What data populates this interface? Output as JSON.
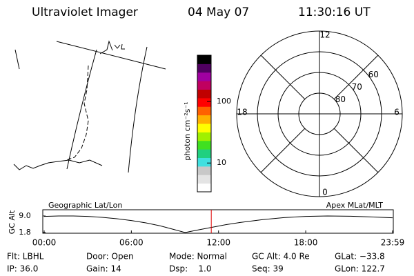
{
  "header": {
    "title": "Ultraviolet Imager",
    "date": "04 May 07",
    "time": "11:30:16 UT"
  },
  "colorbar": {
    "label": "photon cm⁻²s⁻¹",
    "scale": "log",
    "lim": [
      3.4,
      566
    ],
    "ticks": [
      10,
      100
    ],
    "colors": [
      "#ffffff",
      "#e4e4e4",
      "#c8c8c8",
      "#40e0e0",
      "#20d080",
      "#40e020",
      "#a0f000",
      "#ffff00",
      "#ffb000",
      "#ff6000",
      "#ff0000",
      "#c00000",
      "#c00060",
      "#a000a0",
      "#500060",
      "#000000"
    ]
  },
  "polar": {
    "rlim": [
      90,
      50
    ],
    "rticks": [
      80,
      70,
      60
    ],
    "mlt": [
      12,
      18,
      6,
      0
    ]
  },
  "chart_data": {
    "type": "line",
    "ylabel": "GC Alt",
    "left_label": "Geographic Lat/Lon",
    "right_label": "Apex MLat/MLT",
    "x": [
      0,
      1,
      2,
      3,
      4,
      5,
      6,
      7,
      8,
      9,
      9.7,
      10.5,
      11.5,
      12.5,
      13.5,
      15,
      16.5,
      18,
      19.5,
      21,
      22.5,
      23.98
    ],
    "values": [
      8.8,
      9.0,
      9.0,
      8.8,
      8.4,
      7.8,
      7.0,
      6.0,
      4.7,
      3.0,
      1.8,
      2.8,
      4.0,
      5.2,
      6.2,
      7.4,
      8.3,
      8.8,
      9.0,
      8.9,
      8.6,
      8.2
    ],
    "color": "#000000",
    "xlim": [
      0,
      23.98
    ],
    "ylim": [
      1.8,
      9.0
    ],
    "yticks": [
      {
        "value": 9.0,
        "label": "9.0"
      },
      1.8
    ],
    "xticks": [
      {
        "value": 0,
        "label": "00:00"
      },
      {
        "value": 6,
        "label": "06:00"
      },
      {
        "value": 12,
        "label": "12:00"
      },
      {
        "value": 18,
        "label": "18:00"
      },
      {
        "value": 23.98,
        "label": "23:59"
      }
    ],
    "current": 11.5,
    "current_color": "#e00000"
  },
  "status": [
    [
      "Flt: LBHL",
      "Door: Open",
      "Mode: Normal",
      "GC Alt: 4.0 Re",
      "GLat: −33.8"
    ],
    [
      "IP: 36.0",
      "Gain: 14",
      "Dsp:    1.0",
      "Seq: 39",
      "GLon: 122.7"
    ]
  ]
}
